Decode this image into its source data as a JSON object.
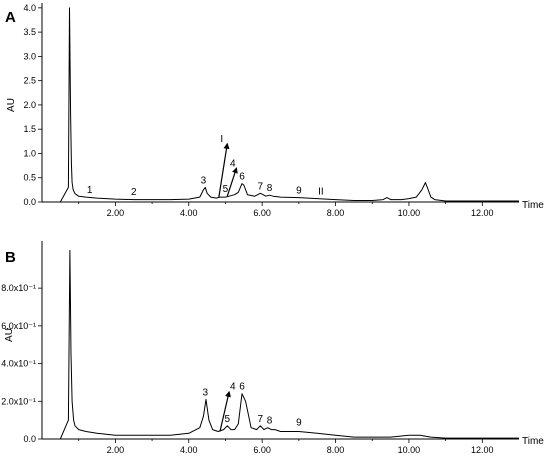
{
  "chart_data": [
    {
      "type": "line",
      "panel": "A",
      "xlabel": "Time",
      "ylabel": "AU",
      "xlim": [
        0,
        13
      ],
      "ylim": [
        0,
        4.1
      ],
      "x_ticks": [
        2,
        4,
        6,
        8,
        10,
        12
      ],
      "x_tick_labels": [
        "2.00",
        "4.00",
        "6.00",
        "8.00",
        "10.00",
        "12.00"
      ],
      "y_ticks": [
        0,
        0.5,
        1.0,
        1.5,
        2.0,
        2.5,
        3.0,
        3.5,
        4.0
      ],
      "y_tick_labels": [
        "0.0",
        "0.5",
        "1.0",
        "1.5",
        "2.0",
        "2.5",
        "3.0",
        "3.5",
        "4.0"
      ],
      "series": [
        {
          "x": [
            0,
            0.5,
            0.72,
            0.75,
            0.78,
            0.8,
            0.82,
            0.85,
            0.9,
            1.0,
            1.2,
            1.5,
            2.0,
            2.5,
            3.0,
            3.5,
            4.0,
            4.3,
            4.4,
            4.45,
            4.5,
            4.6,
            4.75,
            4.85,
            5.0,
            5.1,
            5.25,
            5.35,
            5.45,
            5.5,
            5.6,
            5.8,
            5.95,
            6.0,
            6.1,
            6.2,
            6.3,
            6.5,
            7.0,
            7.5,
            8.0,
            8.5,
            9.0,
            9.3,
            9.4,
            9.5,
            9.8,
            10.0,
            10.2,
            10.35,
            10.45,
            10.5,
            10.6,
            10.7,
            11.0,
            11.5,
            12.0,
            12.5,
            13.0
          ],
          "y": [
            0.0,
            0.0,
            0.3,
            4.0,
            1.8,
            0.8,
            0.4,
            0.25,
            0.17,
            0.12,
            0.1,
            0.08,
            0.06,
            0.05,
            0.05,
            0.05,
            0.06,
            0.1,
            0.25,
            0.3,
            0.18,
            0.1,
            0.08,
            0.1,
            0.1,
            0.12,
            0.15,
            0.2,
            0.38,
            0.35,
            0.15,
            0.12,
            0.18,
            0.16,
            0.12,
            0.14,
            0.12,
            0.1,
            0.09,
            0.07,
            0.05,
            0.03,
            0.03,
            0.05,
            0.09,
            0.05,
            0.05,
            0.07,
            0.1,
            0.25,
            0.4,
            0.3,
            0.1,
            0.05,
            0.02,
            0.02,
            0.02,
            0.02,
            0.02
          ]
        }
      ],
      "annotations": [
        {
          "text": "1",
          "x": 1.3,
          "y": 0.1
        },
        {
          "text": "2",
          "x": 2.5,
          "y": 0.06
        },
        {
          "text": "3",
          "x": 4.4,
          "y": 0.3
        },
        {
          "text": "I",
          "x": 4.9,
          "y": 1.15
        },
        {
          "text": "4",
          "x": 5.2,
          "y": 0.65
        },
        {
          "text": "5",
          "x": 5.0,
          "y": 0.12
        },
        {
          "text": "6",
          "x": 5.45,
          "y": 0.38
        },
        {
          "text": "7",
          "x": 5.95,
          "y": 0.18
        },
        {
          "text": "8",
          "x": 6.2,
          "y": 0.14
        },
        {
          "text": "9",
          "x": 7.0,
          "y": 0.09
        },
        {
          "text": "II",
          "x": 7.6,
          "y": 0.07
        }
      ],
      "arrows": [
        {
          "from": [
            4.82,
            0.1
          ],
          "to": [
            5.05,
            1.2
          ]
        },
        {
          "from": [
            5.05,
            0.12
          ],
          "to": [
            5.3,
            0.7
          ]
        }
      ]
    },
    {
      "type": "line",
      "panel": "B",
      "xlabel": "Time",
      "ylabel": "AU",
      "xlim": [
        0,
        13
      ],
      "ylim": [
        0,
        1.05
      ],
      "x_ticks": [
        2,
        4,
        6,
        8,
        10,
        12
      ],
      "x_tick_labels": [
        "2.00",
        "4.00",
        "6.00",
        "8.00",
        "10.00",
        "12.00"
      ],
      "y_ticks": [
        0,
        0.2,
        0.4,
        0.6,
        0.8
      ],
      "y_tick_labels": [
        "0.0",
        "2.0x10⁻¹",
        "4.0x10⁻¹",
        "6.0x10⁻¹",
        "8.0x10⁻¹"
      ],
      "series": [
        {
          "x": [
            0,
            0.5,
            0.72,
            0.76,
            0.79,
            0.82,
            0.86,
            0.9,
            1.0,
            1.2,
            1.5,
            2.0,
            2.5,
            3.0,
            3.5,
            4.0,
            4.3,
            4.4,
            4.47,
            4.55,
            4.65,
            4.8,
            4.95,
            5.05,
            5.15,
            5.25,
            5.35,
            5.45,
            5.55,
            5.7,
            5.85,
            5.95,
            6.05,
            6.15,
            6.25,
            6.35,
            6.5,
            7.0,
            7.5,
            8.0,
            8.5,
            9.0,
            9.5,
            10.0,
            10.3,
            10.6,
            11.0,
            11.5,
            12.0,
            12.5,
            13.0
          ],
          "y": [
            0.0,
            0.0,
            0.1,
            1.0,
            0.45,
            0.2,
            0.1,
            0.07,
            0.05,
            0.04,
            0.03,
            0.02,
            0.02,
            0.02,
            0.02,
            0.03,
            0.06,
            0.12,
            0.21,
            0.1,
            0.05,
            0.04,
            0.05,
            0.07,
            0.05,
            0.05,
            0.08,
            0.24,
            0.2,
            0.06,
            0.05,
            0.07,
            0.05,
            0.06,
            0.05,
            0.05,
            0.04,
            0.04,
            0.03,
            0.02,
            0.01,
            0.01,
            0.01,
            0.02,
            0.02,
            0.01,
            0.005,
            0.005,
            0.005,
            0.005,
            0.005
          ]
        }
      ],
      "annotations": [
        {
          "text": "3",
          "x": 4.45,
          "y": 0.21
        },
        {
          "text": "4",
          "x": 5.2,
          "y": 0.24
        },
        {
          "text": "5",
          "x": 5.05,
          "y": 0.07
        },
        {
          "text": "6",
          "x": 5.45,
          "y": 0.24
        },
        {
          "text": "7",
          "x": 5.95,
          "y": 0.07
        },
        {
          "text": "8",
          "x": 6.2,
          "y": 0.06
        },
        {
          "text": "9",
          "x": 7.0,
          "y": 0.05
        }
      ],
      "arrows": [
        {
          "from": [
            4.85,
            0.04
          ],
          "to": [
            5.1,
            0.25
          ]
        }
      ]
    }
  ]
}
